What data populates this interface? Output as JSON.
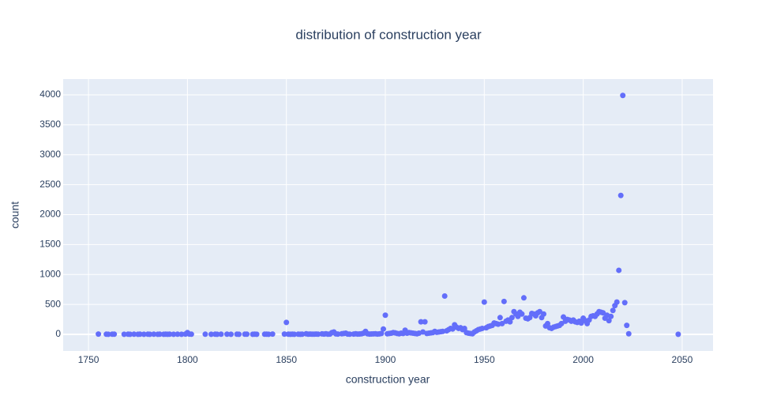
{
  "chart_data": {
    "type": "scatter",
    "title": "distribution of construction year",
    "x_label": "construction year",
    "y_label": "count",
    "color": "#636efa",
    "grid": true,
    "xlim": [
      1737.2,
      2065.6
    ],
    "ylim": [
      -277,
      4264
    ],
    "xticks": [
      1750,
      1800,
      1850,
      1900,
      1950,
      2000,
      2050
    ],
    "yticks": [
      0,
      500,
      1000,
      1500,
      2000,
      2500,
      3000,
      3500,
      4000
    ],
    "x": [
      1755,
      1759,
      1760,
      1762,
      1763,
      1768,
      1770,
      1771,
      1773,
      1775,
      1776,
      1778,
      1780,
      1781,
      1783,
      1785,
      1786,
      1788,
      1789,
      1790,
      1791,
      1793,
      1795,
      1797,
      1799,
      1800,
      1801,
      1802,
      1809,
      1812,
      1814,
      1815,
      1817,
      1820,
      1822,
      1825,
      1826,
      1829,
      1830,
      1833,
      1834,
      1835,
      1839,
      1840,
      1841,
      1843,
      1849,
      1850,
      1851,
      1852,
      1853,
      1854,
      1856,
      1857,
      1858,
      1860,
      1861,
      1862,
      1863,
      1864,
      1865,
      1866,
      1868,
      1869,
      1870,
      1871,
      1872,
      1873,
      1874,
      1875,
      1876,
      1878,
      1879,
      1880,
      1881,
      1882,
      1884,
      1885,
      1886,
      1887,
      1888,
      1889,
      1890,
      1891,
      1892,
      1893,
      1894,
      1895,
      1896,
      1897,
      1898,
      1899,
      1900,
      1901,
      1902,
      1903,
      1904,
      1905,
      1906,
      1907,
      1908,
      1909,
      1910,
      1911,
      1912,
      1913,
      1914,
      1915,
      1916,
      1917,
      1918,
      1919,
      1920,
      1921,
      1922,
      1923,
      1924,
      1925,
      1926,
      1927,
      1928,
      1929,
      1930,
      1931,
      1932,
      1933,
      1934,
      1935,
      1936,
      1937,
      1938,
      1939,
      1940,
      1941,
      1942,
      1943,
      1944,
      1945,
      1946,
      1947,
      1948,
      1949,
      1950,
      1951,
      1952,
      1953,
      1954,
      1955,
      1956,
      1957,
      1958,
      1959,
      1960,
      1961,
      1962,
      1963,
      1964,
      1965,
      1966,
      1967,
      1968,
      1969,
      1970,
      1971,
      1972,
      1973,
      1974,
      1975,
      1976,
      1977,
      1978,
      1979,
      1980,
      1981,
      1982,
      1983,
      1984,
      1985,
      1986,
      1987,
      1988,
      1989,
      1990,
      1991,
      1992,
      1993,
      1994,
      1995,
      1996,
      1997,
      1998,
      1999,
      2000,
      2001,
      2002,
      2003,
      2004,
      2005,
      2006,
      2007,
      2008,
      2009,
      2010,
      2011,
      2012,
      2013,
      2014,
      2015,
      2016,
      2017,
      2018,
      2019,
      2020,
      2021,
      2022,
      2023,
      2048
    ],
    "values": [
      5,
      3,
      2,
      3,
      4,
      2,
      3,
      2,
      3,
      2,
      4,
      2,
      3,
      2,
      3,
      2,
      3,
      2,
      3,
      2,
      4,
      2,
      3,
      2,
      5,
      30,
      5,
      3,
      3,
      2,
      3,
      2,
      3,
      4,
      2,
      3,
      2,
      3,
      4,
      2,
      3,
      2,
      3,
      4,
      2,
      5,
      5,
      200,
      3,
      2,
      3,
      2,
      3,
      2,
      4,
      10,
      3,
      5,
      4,
      3,
      5,
      4,
      8,
      5,
      10,
      4,
      5,
      30,
      40,
      8,
      5,
      10,
      15,
      20,
      5,
      4,
      5,
      10,
      5,
      6,
      10,
      20,
      50,
      10,
      5,
      6,
      8,
      10,
      5,
      8,
      15,
      90,
      320,
      10,
      15,
      20,
      30,
      25,
      15,
      10,
      20,
      15,
      70,
      20,
      30,
      25,
      20,
      15,
      10,
      20,
      210,
      40,
      210,
      15,
      20,
      25,
      30,
      50,
      35,
      40,
      45,
      50,
      640,
      60,
      80,
      100,
      90,
      160,
      120,
      100,
      110,
      80,
      100,
      30,
      20,
      15,
      10,
      40,
      60,
      80,
      90,
      100,
      540,
      110,
      130,
      140,
      150,
      190,
      180,
      170,
      280,
      180,
      550,
      220,
      240,
      210,
      280,
      380,
      340,
      300,
      370,
      340,
      610,
      270,
      260,
      280,
      350,
      340,
      310,
      360,
      380,
      280,
      340,
      140,
      180,
      110,
      100,
      120,
      130,
      140,
      150,
      180,
      290,
      220,
      250,
      240,
      220,
      240,
      210,
      200,
      220,
      190,
      270,
      230,
      180,
      240,
      300,
      310,
      300,
      340,
      380,
      370,
      360,
      270,
      320,
      230,
      300,
      400,
      480,
      540,
      1070,
      2320,
      3990,
      530,
      150,
      10,
      2
    ]
  }
}
